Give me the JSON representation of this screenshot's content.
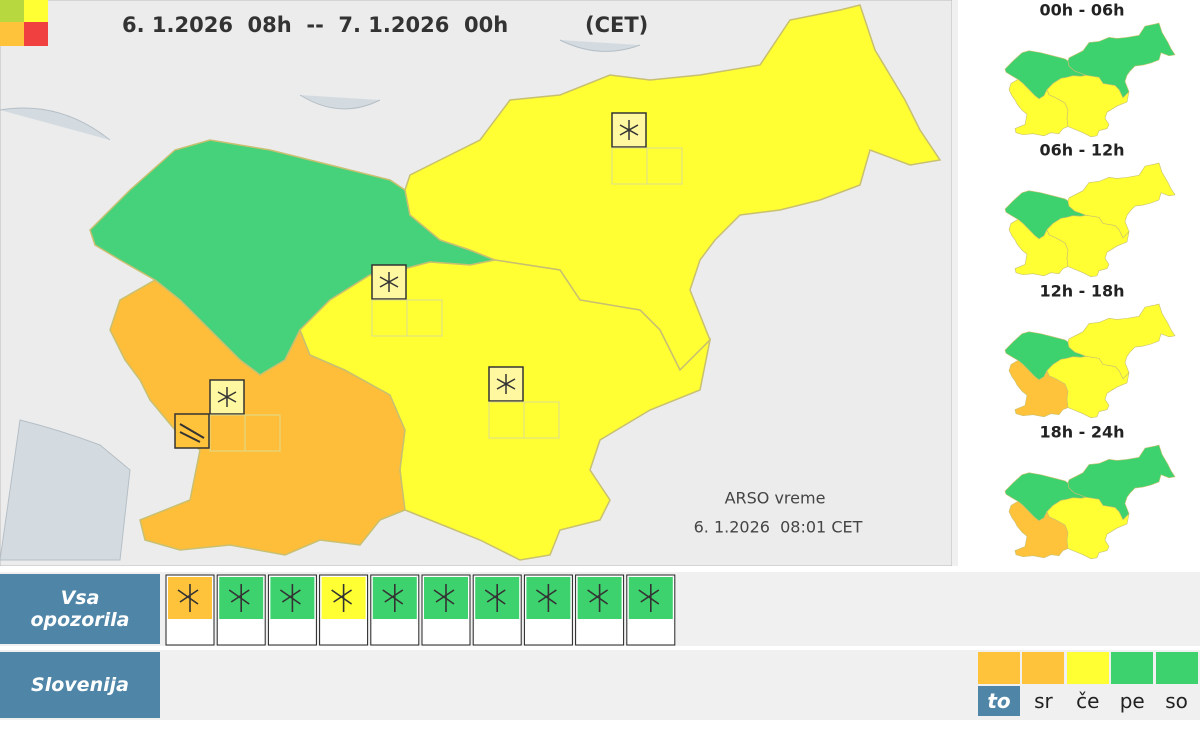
{
  "header": {
    "date_range": "6. 1.2026  08h  --  7. 1.2026  00h",
    "timezone": "(CET)"
  },
  "map": {
    "credit": "ARSO vreme",
    "timestamp": "6. 1.2026  08:01 CET"
  },
  "periods": [
    {
      "label": "00h - 06h"
    },
    {
      "label": "06h - 12h"
    },
    {
      "label": "12h - 18h"
    },
    {
      "label": "18h - 24h"
    }
  ],
  "nav": {
    "all_warnings": "Vsa opozorila",
    "region": "Slovenija"
  },
  "days": [
    "to",
    "sr",
    "če",
    "pe",
    "so"
  ]
}
